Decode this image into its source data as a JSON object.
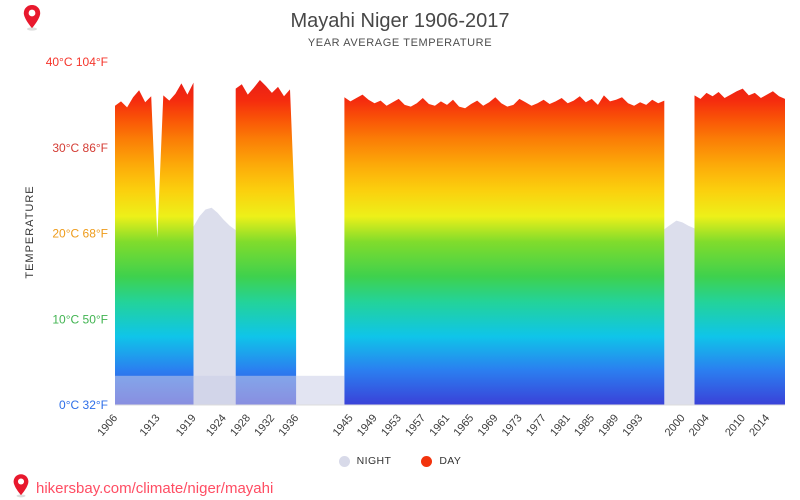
{
  "page": {
    "title": "Mayahi Niger 1906-2017",
    "subtitle": "YEAR AVERAGE TEMPERATURE",
    "footer_link": "hikersbay.com/climate/niger/mayahi",
    "link_color": "#ff4d63",
    "pin_color": "#e8182d"
  },
  "axes": {
    "y_label": "TEMPERATURE",
    "y_ticks": [
      {
        "label": "40°C 104°F",
        "value": 40,
        "color": "#f5352b"
      },
      {
        "label": "30°C 86°F",
        "value": 30,
        "color": "#d43d35"
      },
      {
        "label": "20°C 68°F",
        "value": 20,
        "color": "#ee9b1a"
      },
      {
        "label": "10°C 50°F",
        "value": 10,
        "color": "#41b451"
      },
      {
        "label": "0°C 32°F",
        "value": 0,
        "color": "#2f6fe8"
      }
    ],
    "x_ticks": [
      1906,
      1913,
      1919,
      1924,
      1928,
      1932,
      1936,
      1945,
      1949,
      1953,
      1957,
      1961,
      1965,
      1969,
      1973,
      1977,
      1981,
      1985,
      1989,
      1993,
      2000,
      2004,
      2010,
      2014
    ]
  },
  "legend": [
    {
      "label": "NIGHT",
      "color": "#d8dae9"
    },
    {
      "label": "DAY",
      "color": "#f2330d"
    }
  ],
  "chart_data": {
    "type": "area",
    "title": "Mayahi Niger 1906-2017",
    "subtitle": "YEAR AVERAGE TEMPERATURE",
    "x_range": [
      1906,
      2017
    ],
    "y_range_c": [
      0,
      40
    ],
    "night_fill": "#dcdeec",
    "low_band": {
      "x_start": 1906,
      "x_end": 1944,
      "top_c": 3.4,
      "fill": "rgba(203,206,232,0.55)"
    },
    "gradient_stops": [
      {
        "t": 0,
        "color": "#3a41d8"
      },
      {
        "t": 4,
        "color": "#2b7ef0"
      },
      {
        "t": 8,
        "color": "#0fc5e9"
      },
      {
        "t": 12,
        "color": "#23d39a"
      },
      {
        "t": 15,
        "color": "#3fd14d"
      },
      {
        "t": 19,
        "color": "#80dc2c"
      },
      {
        "t": 22,
        "color": "#edf019"
      },
      {
        "t": 25,
        "color": "#fbd00e"
      },
      {
        "t": 28,
        "color": "#fcaa09"
      },
      {
        "t": 31,
        "color": "#fb7d06"
      },
      {
        "t": 33.5,
        "color": "#f95107"
      },
      {
        "t": 35.5,
        "color": "#f52c0e"
      },
      {
        "t": 40,
        "color": "#de1020"
      }
    ],
    "series": [
      {
        "name": "DAY",
        "start_year": 1906,
        "values": [
          34.9,
          35.4,
          34.7,
          35.9,
          36.7,
          35.3,
          36.0,
          19.5,
          36.1,
          35.5,
          36.3,
          37.5,
          36.2,
          37.6,
          null,
          null,
          null,
          null,
          null,
          null,
          36.9,
          37.4,
          36.2,
          37.0,
          37.9,
          37.2,
          36.4,
          37.1,
          36.0,
          36.8,
          19.5,
          null,
          null,
          null,
          null,
          null,
          null,
          null,
          35.9,
          35.4,
          35.8,
          36.2,
          35.6,
          35.2,
          35.5,
          34.9,
          35.3,
          35.7,
          35.0,
          34.8,
          35.2,
          35.8,
          35.1,
          34.9,
          35.4,
          35.0,
          35.6,
          34.8,
          34.6,
          35.1,
          35.5,
          34.9,
          35.3,
          35.9,
          35.2,
          34.8,
          35.0,
          35.7,
          35.3,
          34.9,
          35.2,
          35.6,
          35.1,
          35.4,
          35.8,
          35.2,
          35.5,
          36.0,
          35.3,
          35.7,
          35.0,
          36.1,
          35.4,
          35.6,
          35.9,
          35.2,
          34.9,
          35.3,
          35.0,
          35.6,
          35.2,
          35.5,
          null,
          null,
          null,
          null,
          36.1,
          35.7,
          36.4,
          36.0,
          36.5,
          35.8,
          36.2,
          36.6,
          36.9,
          36.1,
          36.4,
          35.8,
          36.2,
          36.6,
          36.0,
          35.7
        ]
      },
      {
        "name": "NIGHT",
        "segments": [
          {
            "start_year": 1919,
            "values": [
              20.8,
              22.0,
              22.8,
              23.0,
              22.4,
              21.6,
              20.9,
              20.4
            ]
          },
          {
            "start_year": 1997,
            "values": [
              20.5,
              21.0,
              21.5,
              21.3,
              20.9,
              20.6
            ]
          }
        ]
      }
    ]
  }
}
